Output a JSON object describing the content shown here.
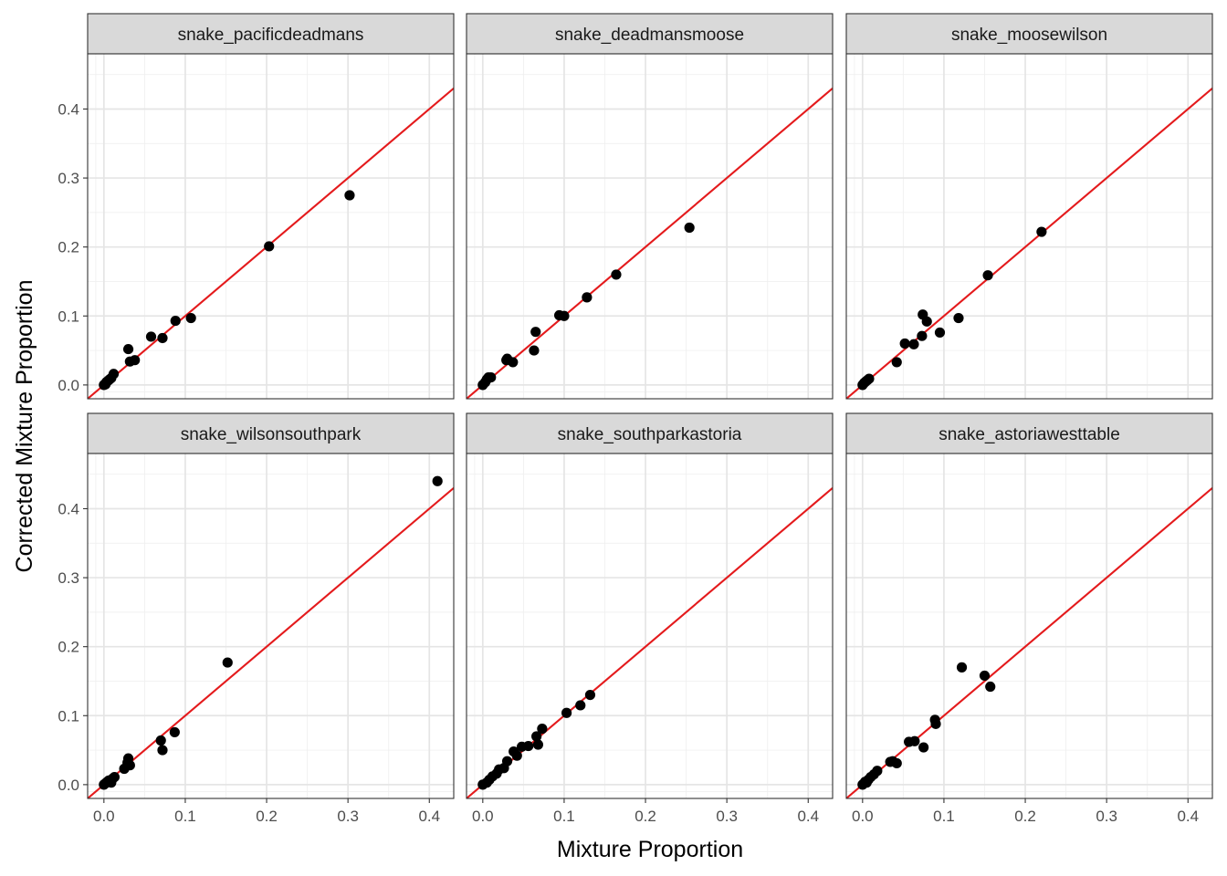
{
  "chart_data": {
    "type": "scatter",
    "facet_layout": "2 rows x 3 columns",
    "xlabel": "Mixture Proportion",
    "ylabel": "Corrected Mixture Proportion",
    "xlim": [
      -0.02,
      0.43
    ],
    "ylim": [
      -0.02,
      0.48
    ],
    "x_ticks": [
      "0.0",
      "0.1",
      "0.2",
      "0.3",
      "0.4"
    ],
    "y_ticks": [
      "0.0",
      "0.1",
      "0.2",
      "0.3",
      "0.4"
    ],
    "reference_line": {
      "slope": 1,
      "intercept": 0,
      "color": "#e41a1c"
    },
    "point_color": "#000000",
    "grid": true,
    "panels": [
      {
        "title": "snake_pacificdeadmans",
        "points": [
          [
            0.0,
            0.0
          ],
          [
            0.002,
            0.001
          ],
          [
            0.003,
            0.004
          ],
          [
            0.005,
            0.006
          ],
          [
            0.007,
            0.008
          ],
          [
            0.009,
            0.01
          ],
          [
            0.012,
            0.016
          ],
          [
            0.03,
            0.052
          ],
          [
            0.032,
            0.034
          ],
          [
            0.038,
            0.036
          ],
          [
            0.058,
            0.07
          ],
          [
            0.072,
            0.068
          ],
          [
            0.088,
            0.093
          ],
          [
            0.107,
            0.097
          ],
          [
            0.203,
            0.201
          ],
          [
            0.302,
            0.275
          ]
        ]
      },
      {
        "title": "snake_deadmansmoose",
        "points": [
          [
            0.0,
            0.0
          ],
          [
            0.003,
            0.004
          ],
          [
            0.005,
            0.008
          ],
          [
            0.007,
            0.011
          ],
          [
            0.01,
            0.011
          ],
          [
            0.03,
            0.038
          ],
          [
            0.029,
            0.036
          ],
          [
            0.037,
            0.033
          ],
          [
            0.063,
            0.05
          ],
          [
            0.065,
            0.077
          ],
          [
            0.094,
            0.101
          ],
          [
            0.1,
            0.1
          ],
          [
            0.128,
            0.127
          ],
          [
            0.164,
            0.16
          ],
          [
            0.254,
            0.228
          ]
        ]
      },
      {
        "title": "snake_moosewilson",
        "points": [
          [
            0.0,
            0.0
          ],
          [
            0.002,
            0.003
          ],
          [
            0.004,
            0.005
          ],
          [
            0.006,
            0.007
          ],
          [
            0.008,
            0.009
          ],
          [
            0.042,
            0.033
          ],
          [
            0.052,
            0.06
          ],
          [
            0.063,
            0.059
          ],
          [
            0.073,
            0.071
          ],
          [
            0.074,
            0.102
          ],
          [
            0.079,
            0.092
          ],
          [
            0.095,
            0.076
          ],
          [
            0.118,
            0.097
          ],
          [
            0.154,
            0.159
          ],
          [
            0.22,
            0.222
          ]
        ]
      },
      {
        "title": "snake_wilsonsouthpark",
        "points": [
          [
            0.0,
            0.0
          ],
          [
            0.002,
            0.002
          ],
          [
            0.004,
            0.004
          ],
          [
            0.006,
            0.006
          ],
          [
            0.009,
            0.003
          ],
          [
            0.011,
            0.009
          ],
          [
            0.013,
            0.011
          ],
          [
            0.025,
            0.023
          ],
          [
            0.029,
            0.032
          ],
          [
            0.03,
            0.038
          ],
          [
            0.032,
            0.028
          ],
          [
            0.07,
            0.064
          ],
          [
            0.072,
            0.05
          ],
          [
            0.087,
            0.076
          ],
          [
            0.152,
            0.177
          ],
          [
            0.41,
            0.44
          ]
        ]
      },
      {
        "title": "snake_southparkastoria",
        "points": [
          [
            0.0,
            0.0
          ],
          [
            0.005,
            0.003
          ],
          [
            0.008,
            0.007
          ],
          [
            0.012,
            0.012
          ],
          [
            0.017,
            0.016
          ],
          [
            0.02,
            0.022
          ],
          [
            0.026,
            0.024
          ],
          [
            0.03,
            0.034
          ],
          [
            0.038,
            0.048
          ],
          [
            0.042,
            0.042
          ],
          [
            0.048,
            0.055
          ],
          [
            0.056,
            0.056
          ],
          [
            0.066,
            0.07
          ],
          [
            0.068,
            0.058
          ],
          [
            0.073,
            0.081
          ],
          [
            0.103,
            0.104
          ],
          [
            0.12,
            0.115
          ],
          [
            0.132,
            0.13
          ]
        ]
      },
      {
        "title": "snake_astoriawesttable",
        "points": [
          [
            0.0,
            0.0
          ],
          [
            0.003,
            0.004
          ],
          [
            0.005,
            0.003
          ],
          [
            0.007,
            0.007
          ],
          [
            0.01,
            0.011
          ],
          [
            0.014,
            0.015
          ],
          [
            0.018,
            0.02
          ],
          [
            0.034,
            0.033
          ],
          [
            0.037,
            0.034
          ],
          [
            0.042,
            0.031
          ],
          [
            0.057,
            0.062
          ],
          [
            0.064,
            0.063
          ],
          [
            0.075,
            0.054
          ],
          [
            0.089,
            0.094
          ],
          [
            0.09,
            0.088
          ],
          [
            0.122,
            0.17
          ],
          [
            0.15,
            0.158
          ],
          [
            0.157,
            0.142
          ]
        ]
      }
    ]
  }
}
